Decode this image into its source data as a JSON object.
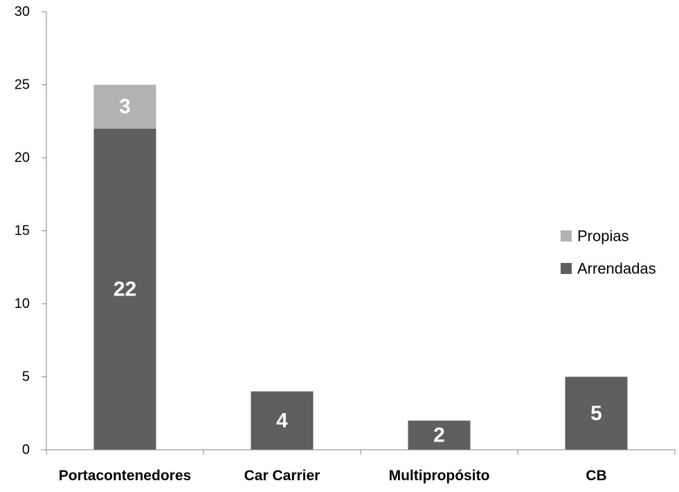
{
  "chart_data": {
    "type": "bar",
    "stacked": true,
    "title": "",
    "xlabel": "",
    "ylabel": "",
    "categories": [
      "Portacontenedores",
      "Car Carrier",
      "Multipropósito",
      "CB"
    ],
    "series": [
      {
        "name": "Arrendadas",
        "values": [
          22,
          4,
          2,
          5
        ],
        "color": "#5f5f5f"
      },
      {
        "name": "Propias",
        "values": [
          3,
          0,
          0,
          0
        ],
        "color": "#b2b2b2"
      }
    ],
    "ylim": [
      0,
      30
    ],
    "yticks": [
      0,
      5,
      10,
      15,
      20,
      25,
      30
    ],
    "grid": false,
    "legend": {
      "placement": "right",
      "order": [
        "Propias",
        "Arrendadas"
      ]
    },
    "axis_color": "#868686"
  }
}
